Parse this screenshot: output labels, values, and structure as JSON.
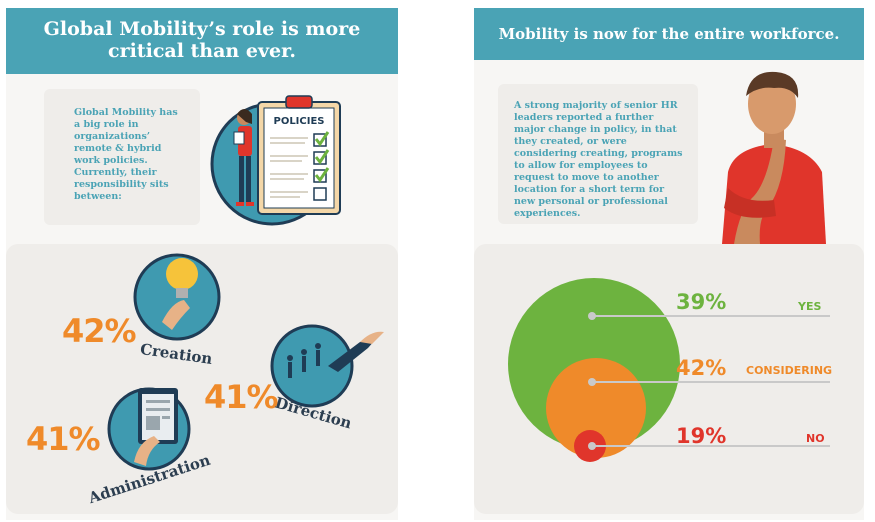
{
  "left": {
    "title": "Global Mobility’s role is more critical than ever.",
    "intro": "Global Mobility has a big role in organizations’ remote & hybrid work policies. Currently, their responsibility sits between:",
    "policies_label": "POLICIES",
    "stats": [
      {
        "value": "42%",
        "label": "Creation"
      },
      {
        "value": "41%",
        "label": "Direction"
      },
      {
        "value": "41%",
        "label": "Administration"
      }
    ]
  },
  "right": {
    "title": "Mobility is now for the entire workforce.",
    "intro": "A strong majority of senior HR leaders reported a further major change in policy, in that they created, or were considering creating, programs to allow for employees to request to move to another location for a short term  for new personal or professional experiences."
  },
  "chart_data": {
    "type": "pie",
    "title": "",
    "categories": [
      "YES",
      "CONSIDERING",
      "NO"
    ],
    "values": [
      39,
      42,
      19
    ],
    "value_labels": [
      "39%",
      "42%",
      "19%"
    ],
    "colors": [
      "#6db33f",
      "#ef8a2a",
      "#e0352b"
    ]
  },
  "colors": {
    "teal": "#4aa3b5",
    "orange": "#ef8a2a",
    "green": "#6db33f",
    "red": "#e0352b",
    "navy": "#1f3c55"
  }
}
